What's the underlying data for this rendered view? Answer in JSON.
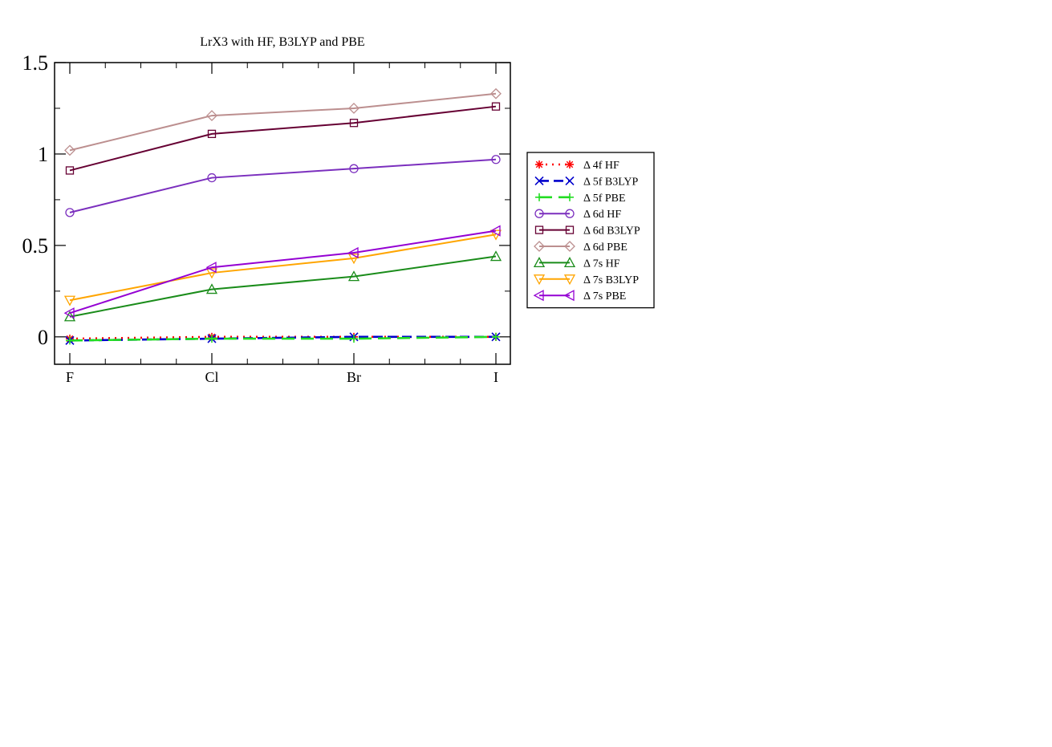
{
  "chart_data": {
    "type": "line",
    "title": "LrX3 with HF, B3LYP and PBE",
    "xlabel": "",
    "ylabel": "",
    "categories": [
      "F",
      "Cl",
      "Br",
      "I"
    ],
    "ylim": [
      -0.15,
      1.5
    ],
    "yticks": [
      "0",
      "0.5",
      "1",
      "1.5"
    ],
    "ytick_values": [
      0,
      0.5,
      1,
      1.5
    ],
    "grid": false,
    "legend_position": "right",
    "series": [
      {
        "name": "Δ 4f  HF",
        "values": [
          -0.01,
          0.0,
          0.0,
          0.0
        ],
        "color": "#ff0000",
        "marker": "star",
        "dash": "dot"
      },
      {
        "name": "Δ 5f B3LYP",
        "values": [
          -0.02,
          -0.01,
          0.0,
          0.0
        ],
        "color": "#0000cc",
        "marker": "x",
        "dash": "dash"
      },
      {
        "name": "Δ 5f PBE",
        "values": [
          -0.02,
          -0.01,
          -0.01,
          0.0
        ],
        "color": "#22dd22",
        "marker": "plus",
        "dash": "longdash"
      },
      {
        "name": "Δ 6d HF",
        "values": [
          0.68,
          0.87,
          0.92,
          0.97
        ],
        "color": "#7b2fbe",
        "marker": "circle",
        "dash": "solid"
      },
      {
        "name": "Δ 6d B3LYP",
        "values": [
          0.91,
          1.11,
          1.17,
          1.26
        ],
        "color": "#660033",
        "marker": "square",
        "dash": "solid"
      },
      {
        "name": "Δ 6d PBE",
        "values": [
          1.02,
          1.21,
          1.25,
          1.33
        ],
        "color": "#bc8f8f",
        "marker": "diamond",
        "dash": "solid"
      },
      {
        "name": "Δ 7s HF",
        "values": [
          0.11,
          0.26,
          0.33,
          0.44
        ],
        "color": "#1a8c1a",
        "marker": "triangle-up",
        "dash": "solid"
      },
      {
        "name": "Δ 7s B3LYP",
        "values": [
          0.2,
          0.35,
          0.43,
          0.56
        ],
        "color": "#ffa500",
        "marker": "triangle-down",
        "dash": "solid"
      },
      {
        "name": "Δ 7s PBE",
        "values": [
          0.13,
          0.38,
          0.46,
          0.58
        ],
        "color": "#9400d3",
        "marker": "triangle-left",
        "dash": "solid"
      }
    ]
  }
}
